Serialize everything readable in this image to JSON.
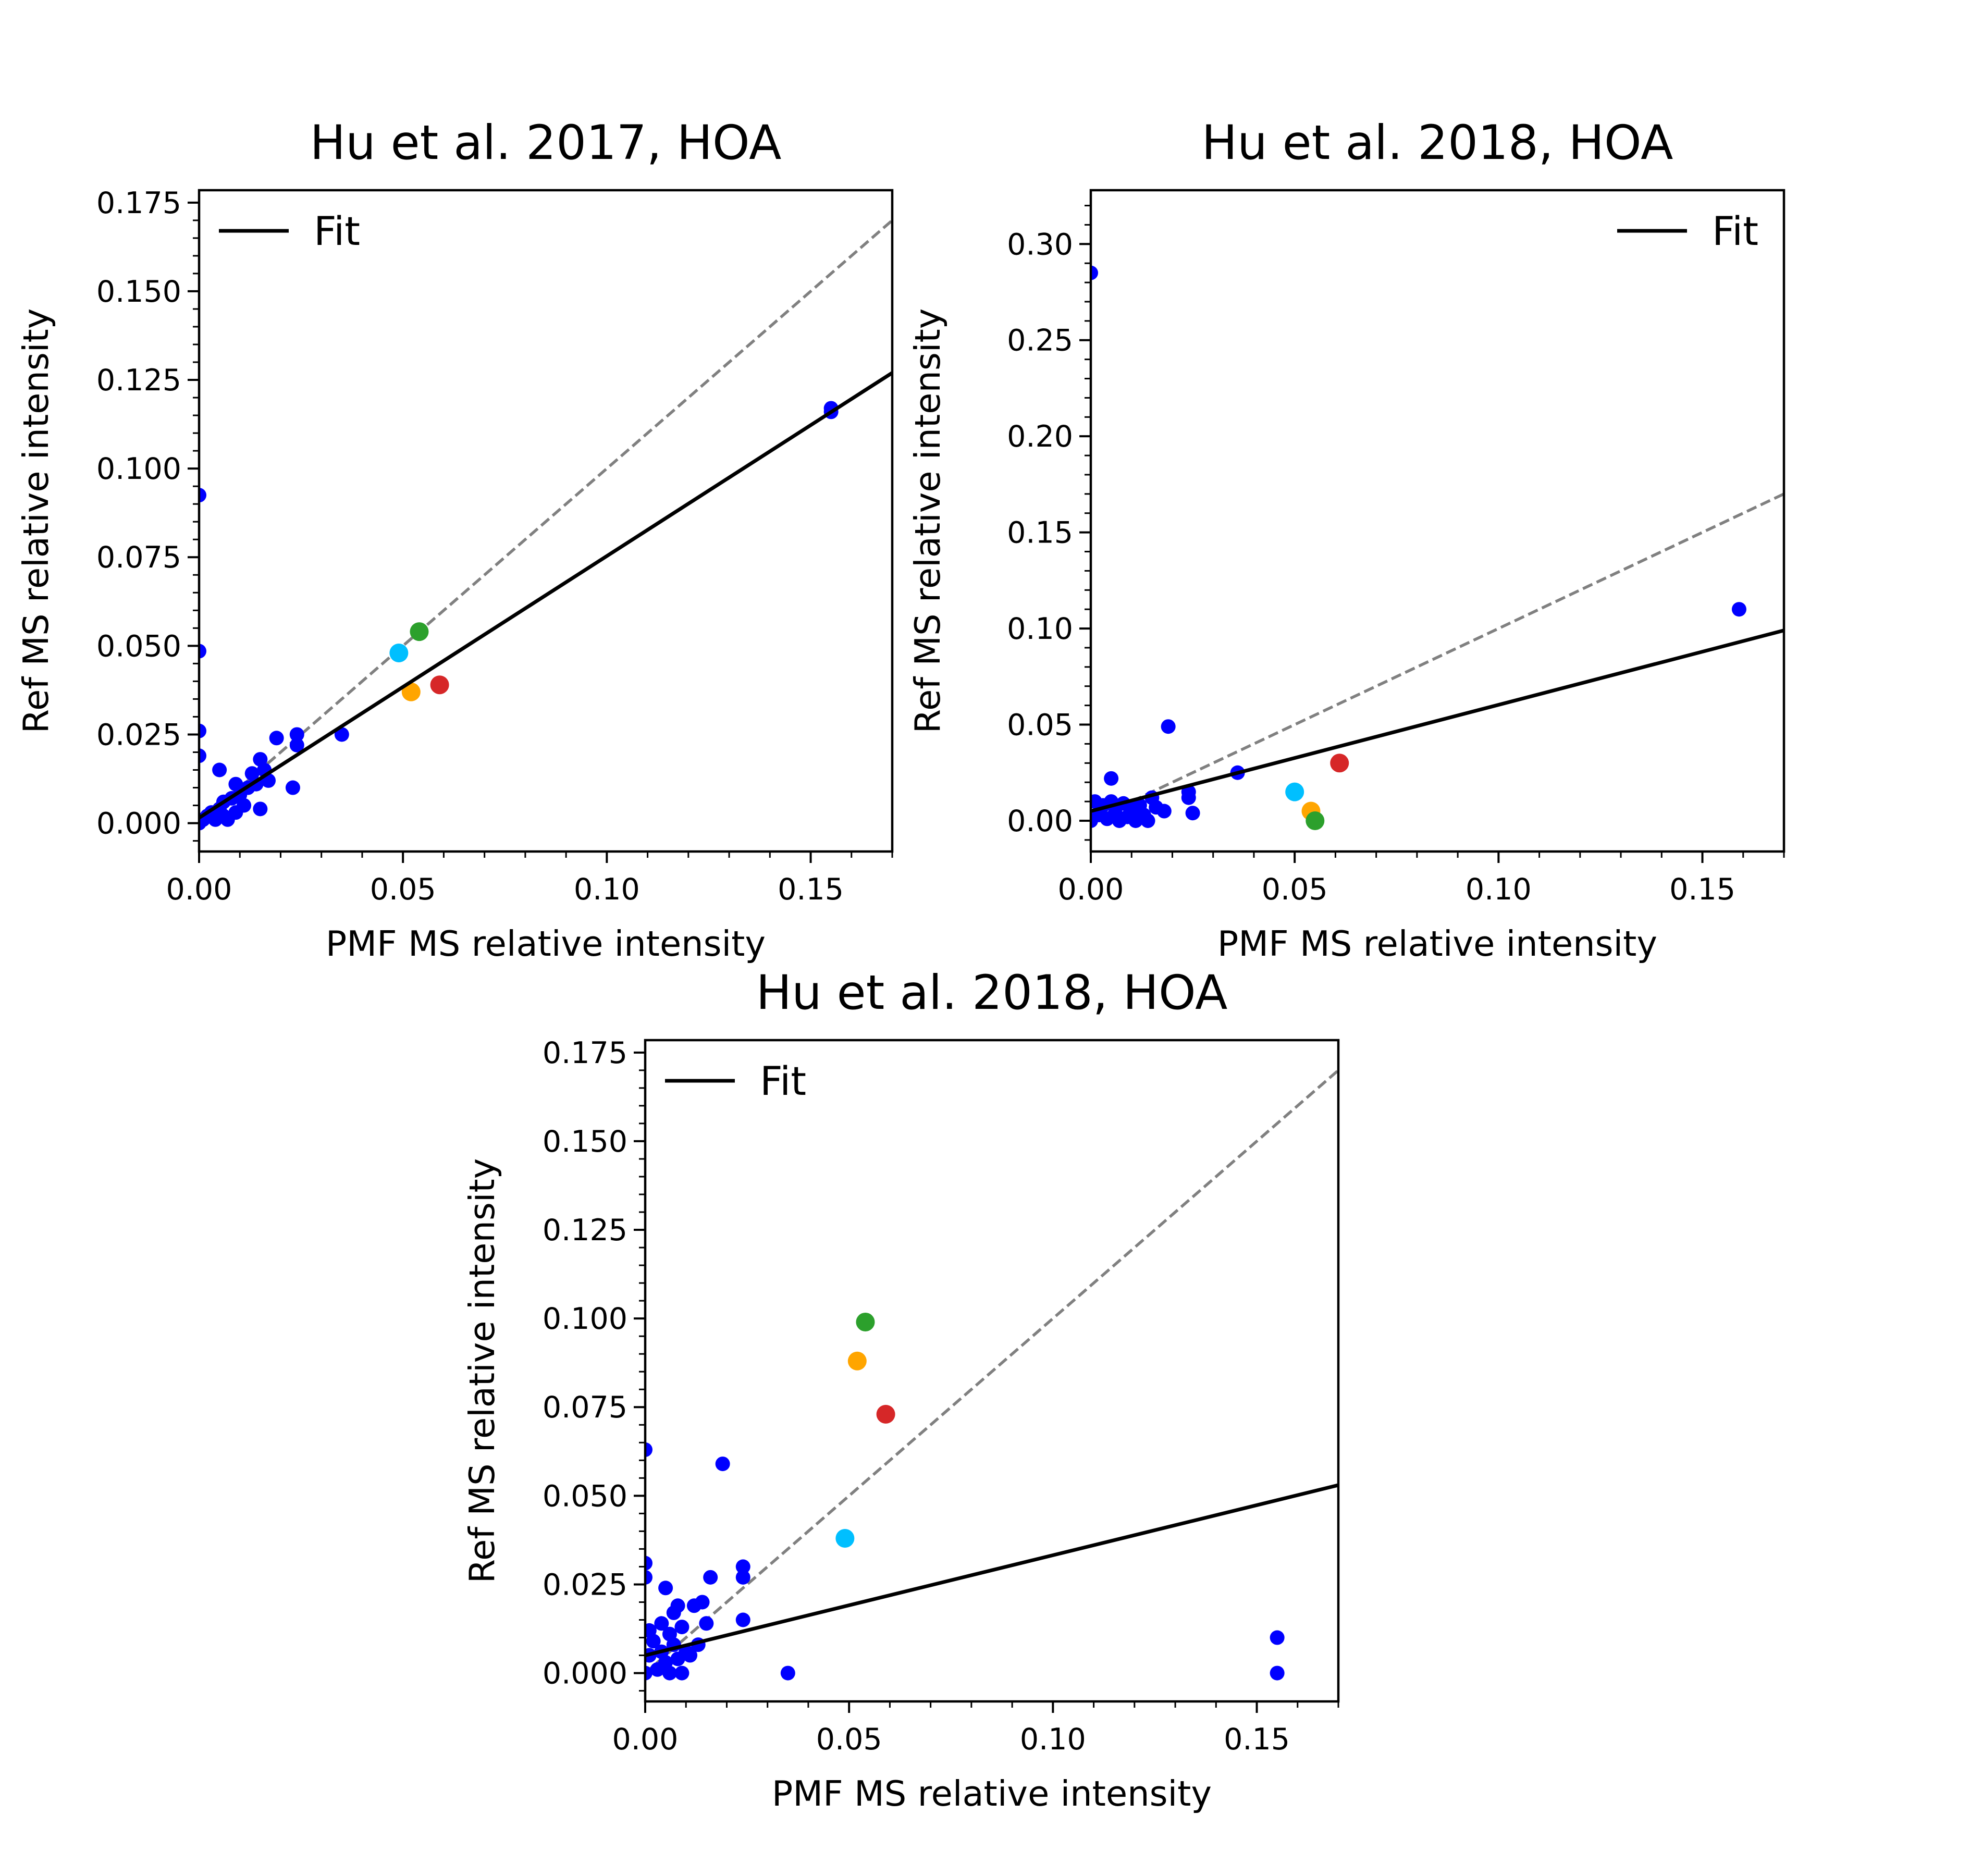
{
  "chart_data": [
    {
      "type": "scatter",
      "title": "Hu et al. 2017, HOA",
      "xlabel": "PMF MS relative intensity",
      "ylabel": "Ref MS relative intensity",
      "xlim": [
        0,
        0.17
      ],
      "ylim": [
        -0.008,
        0.1785
      ],
      "xticks": [
        0.0,
        0.05,
        0.1,
        0.15
      ],
      "xtick_labels": [
        "0.00",
        "0.05",
        "0.10",
        "0.15"
      ],
      "yticks": [
        0.0,
        0.025,
        0.05,
        0.075,
        0.1,
        0.125,
        0.15,
        0.175
      ],
      "ytick_labels": [
        "0.000",
        "0.025",
        "0.050",
        "0.075",
        "0.100",
        "0.125",
        "0.150",
        "0.175"
      ],
      "legend": {
        "position": "upper left",
        "entries": [
          "Fit"
        ]
      },
      "fit_line": {
        "label": "Fit",
        "color": "#000000",
        "x": [
          0,
          0.17
        ],
        "y": [
          0.0015,
          0.127
        ]
      },
      "reference_line": {
        "style": "dashed",
        "color": "#808080",
        "x": [
          0,
          0.17
        ],
        "y": [
          0,
          0.17
        ]
      },
      "series": [
        {
          "color": "#0000ff",
          "points": [
            [
              0.0,
              0.0925
            ],
            [
              0.0,
              0.0485
            ],
            [
              0.0,
              0.026
            ],
            [
              0.0,
              0.019
            ],
            [
              0.0,
              0.0
            ],
            [
              0.001,
              0.001
            ],
            [
              0.002,
              0.002
            ],
            [
              0.003,
              0.003
            ],
            [
              0.004,
              0.001
            ],
            [
              0.005,
              0.004
            ],
            [
              0.005,
              0.015
            ],
            [
              0.006,
              0.002
            ],
            [
              0.006,
              0.006
            ],
            [
              0.007,
              0.001
            ],
            [
              0.008,
              0.007
            ],
            [
              0.009,
              0.003
            ],
            [
              0.009,
              0.011
            ],
            [
              0.01,
              0.008
            ],
            [
              0.011,
              0.005
            ],
            [
              0.012,
              0.01
            ],
            [
              0.013,
              0.014
            ],
            [
              0.014,
              0.011
            ],
            [
              0.015,
              0.018
            ],
            [
              0.015,
              0.004
            ],
            [
              0.016,
              0.015
            ],
            [
              0.017,
              0.012
            ],
            [
              0.019,
              0.024
            ],
            [
              0.023,
              0.01
            ],
            [
              0.024,
              0.022
            ],
            [
              0.024,
              0.025
            ],
            [
              0.035,
              0.025
            ],
            [
              0.155,
              0.117
            ],
            [
              0.155,
              0.116
            ]
          ]
        },
        {
          "color": "#00bfff",
          "points": [
            [
              0.049,
              0.048
            ]
          ]
        },
        {
          "color": "#2ca02c",
          "points": [
            [
              0.054,
              0.054
            ]
          ]
        },
        {
          "color": "#ffa500",
          "points": [
            [
              0.052,
              0.037
            ]
          ]
        },
        {
          "color": "#d62728",
          "points": [
            [
              0.059,
              0.039
            ]
          ]
        }
      ]
    },
    {
      "type": "scatter",
      "title": "Hu et al. 2018, HOA",
      "xlabel": "PMF MS relative intensity",
      "ylabel": "Ref MS relative intensity",
      "xlim": [
        0,
        0.17
      ],
      "ylim": [
        -0.016,
        0.328
      ],
      "xticks": [
        0.0,
        0.05,
        0.1,
        0.15
      ],
      "xtick_labels": [
        "0.00",
        "0.05",
        "0.10",
        "0.15"
      ],
      "yticks": [
        0.0,
        0.05,
        0.1,
        0.15,
        0.2,
        0.25,
        0.3
      ],
      "ytick_labels": [
        "0.00",
        "0.05",
        "0.10",
        "0.15",
        "0.20",
        "0.25",
        "0.30"
      ],
      "legend": {
        "position": "upper right",
        "entries": [
          "Fit"
        ]
      },
      "fit_line": {
        "label": "Fit",
        "color": "#000000",
        "x": [
          0,
          0.17
        ],
        "y": [
          0.005,
          0.099
        ]
      },
      "reference_line": {
        "style": "dashed",
        "color": "#808080",
        "x": [
          0,
          0.17
        ],
        "y": [
          0,
          0.17
        ]
      },
      "series": [
        {
          "color": "#0000ff",
          "points": [
            [
              0.0,
              0.285
            ],
            [
              0.0,
              0.0
            ],
            [
              0.001,
              0.01
            ],
            [
              0.002,
              0.003
            ],
            [
              0.003,
              0.008
            ],
            [
              0.004,
              0.001
            ],
            [
              0.005,
              0.022
            ],
            [
              0.005,
              0.01
            ],
            [
              0.006,
              0.004
            ],
            [
              0.007,
              0.0
            ],
            [
              0.008,
              0.009
            ],
            [
              0.009,
              0.002
            ],
            [
              0.01,
              0.006
            ],
            [
              0.011,
              0.0
            ],
            [
              0.012,
              0.008
            ],
            [
              0.013,
              0.003
            ],
            [
              0.014,
              0.0
            ],
            [
              0.015,
              0.012
            ],
            [
              0.016,
              0.007
            ],
            [
              0.018,
              0.005
            ],
            [
              0.019,
              0.049
            ],
            [
              0.024,
              0.015
            ],
            [
              0.024,
              0.012
            ],
            [
              0.025,
              0.004
            ],
            [
              0.036,
              0.025
            ],
            [
              0.159,
              0.11
            ]
          ]
        },
        {
          "color": "#00bfff",
          "points": [
            [
              0.05,
              0.015
            ]
          ]
        },
        {
          "color": "#ffa500",
          "points": [
            [
              0.054,
              0.005
            ]
          ]
        },
        {
          "color": "#2ca02c",
          "points": [
            [
              0.055,
              0.0
            ]
          ]
        },
        {
          "color": "#d62728",
          "points": [
            [
              0.061,
              0.03
            ]
          ]
        }
      ]
    },
    {
      "type": "scatter",
      "title": "Hu et al. 2018, HOA",
      "xlabel": "PMF MS relative intensity",
      "ylabel": "Ref MS relative intensity",
      "xlim": [
        0,
        0.17
      ],
      "ylim": [
        -0.008,
        0.1785
      ],
      "xticks": [
        0.0,
        0.05,
        0.1,
        0.15
      ],
      "xtick_labels": [
        "0.00",
        "0.05",
        "0.10",
        "0.15"
      ],
      "yticks": [
        0.0,
        0.025,
        0.05,
        0.075,
        0.1,
        0.125,
        0.15,
        0.175
      ],
      "ytick_labels": [
        "0.000",
        "0.025",
        "0.050",
        "0.075",
        "0.100",
        "0.125",
        "0.150",
        "0.175"
      ],
      "legend": {
        "position": "upper left",
        "entries": [
          "Fit"
        ]
      },
      "fit_line": {
        "label": "Fit",
        "color": "#000000",
        "x": [
          0,
          0.17
        ],
        "y": [
          0.005,
          0.053
        ]
      },
      "reference_line": {
        "style": "dashed",
        "color": "#808080",
        "x": [
          0,
          0.17
        ],
        "y": [
          0,
          0.17
        ]
      },
      "series": [
        {
          "color": "#0000ff",
          "points": [
            [
              0.0,
              0.063
            ],
            [
              0.0,
              0.031
            ],
            [
              0.0,
              0.027
            ],
            [
              0.0,
              0.0
            ],
            [
              0.001,
              0.012
            ],
            [
              0.001,
              0.005
            ],
            [
              0.002,
              0.009
            ],
            [
              0.003,
              0.001
            ],
            [
              0.004,
              0.014
            ],
            [
              0.004,
              0.006
            ],
            [
              0.005,
              0.024
            ],
            [
              0.005,
              0.003
            ],
            [
              0.006,
              0.011
            ],
            [
              0.006,
              0.0
            ],
            [
              0.007,
              0.017
            ],
            [
              0.007,
              0.008
            ],
            [
              0.008,
              0.019
            ],
            [
              0.008,
              0.004
            ],
            [
              0.009,
              0.0
            ],
            [
              0.009,
              0.013
            ],
            [
              0.01,
              0.006
            ],
            [
              0.011,
              0.005
            ],
            [
              0.012,
              0.019
            ],
            [
              0.013,
              0.008
            ],
            [
              0.014,
              0.02
            ],
            [
              0.015,
              0.014
            ],
            [
              0.016,
              0.027
            ],
            [
              0.019,
              0.059
            ],
            [
              0.024,
              0.027
            ],
            [
              0.024,
              0.03
            ],
            [
              0.024,
              0.015
            ],
            [
              0.035,
              0.0
            ],
            [
              0.155,
              0.01
            ],
            [
              0.155,
              0.0
            ]
          ]
        },
        {
          "color": "#00bfff",
          "points": [
            [
              0.049,
              0.038
            ]
          ]
        },
        {
          "color": "#2ca02c",
          "points": [
            [
              0.054,
              0.099
            ]
          ]
        },
        {
          "color": "#ffa500",
          "points": [
            [
              0.052,
              0.088
            ]
          ]
        },
        {
          "color": "#d62728",
          "points": [
            [
              0.059,
              0.073
            ]
          ]
        }
      ]
    }
  ]
}
